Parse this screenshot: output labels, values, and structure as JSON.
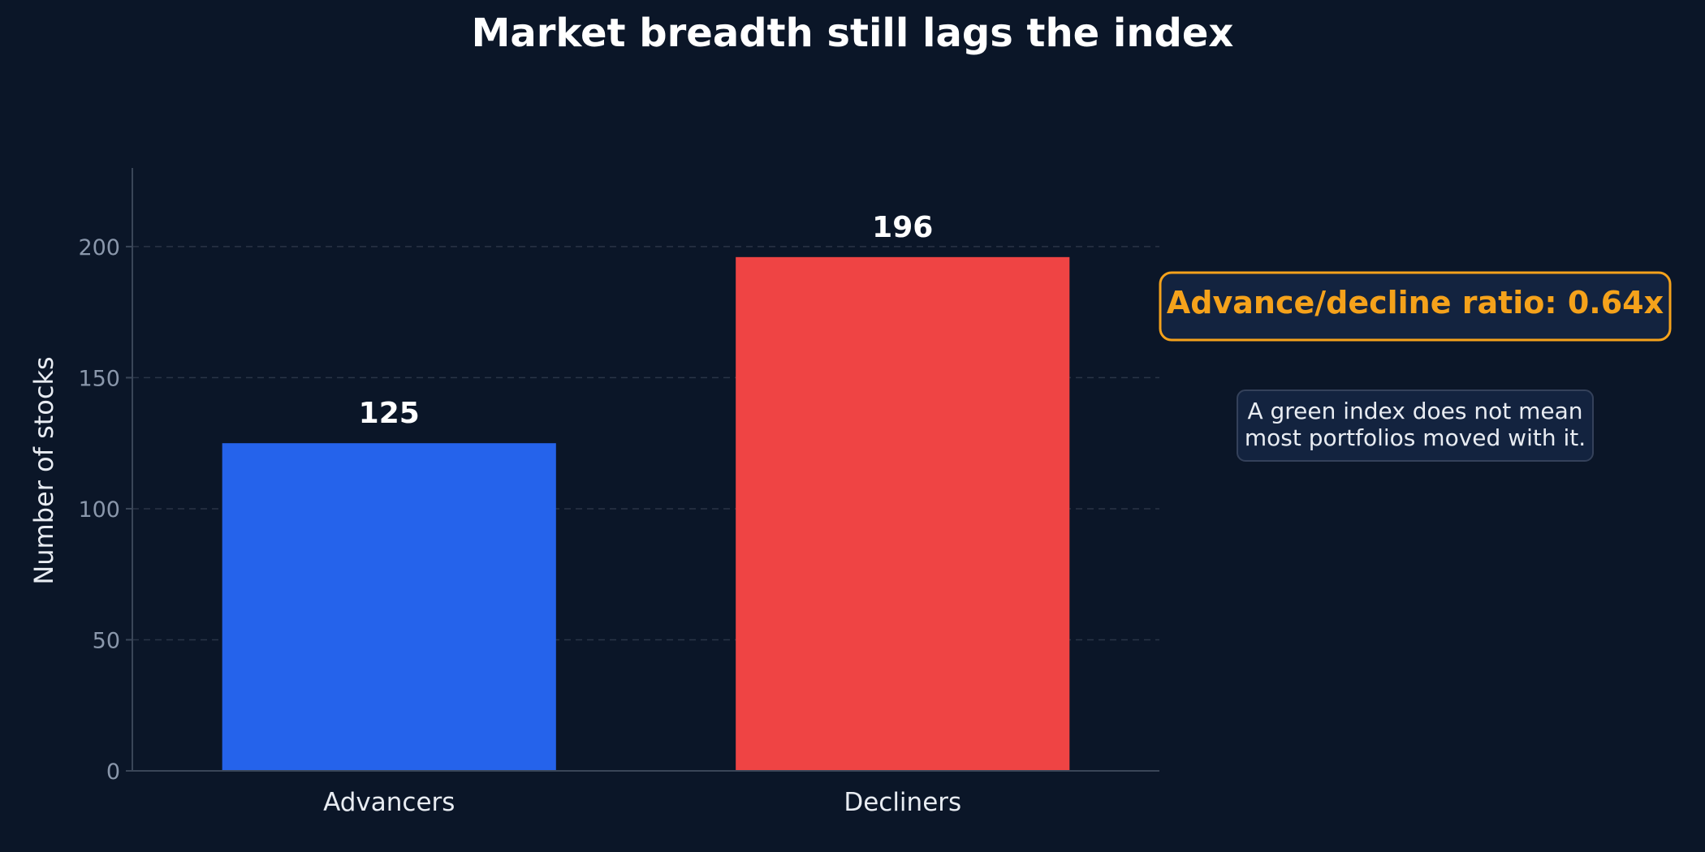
{
  "chart_data": {
    "type": "bar",
    "title": "Market breadth still lags the index",
    "xlabel": "",
    "ylabel": "Number of stocks",
    "categories": [
      "Advancers",
      "Decliners"
    ],
    "values": [
      125,
      196
    ],
    "data_labels": [
      "125",
      "196"
    ],
    "bar_colors": [
      "#2563eb",
      "#ef4444"
    ],
    "ylim": [
      0,
      230
    ],
    "yticks": [
      0,
      50,
      100,
      150,
      200
    ],
    "ytick_labels": [
      "0",
      "50",
      "100",
      "150",
      "200"
    ],
    "grid": "horizontal dashed",
    "legend": "none",
    "annotations": {
      "ratio": "Advance/decline ratio: 0.64x",
      "note_lines": [
        "A green index does not mean",
        "most portfolios moved with it."
      ]
    }
  },
  "colors": {
    "background": "#0b1628",
    "ratio_accent": "#f5a21b",
    "axis": "#3a4658",
    "grid": "#2a3446"
  }
}
